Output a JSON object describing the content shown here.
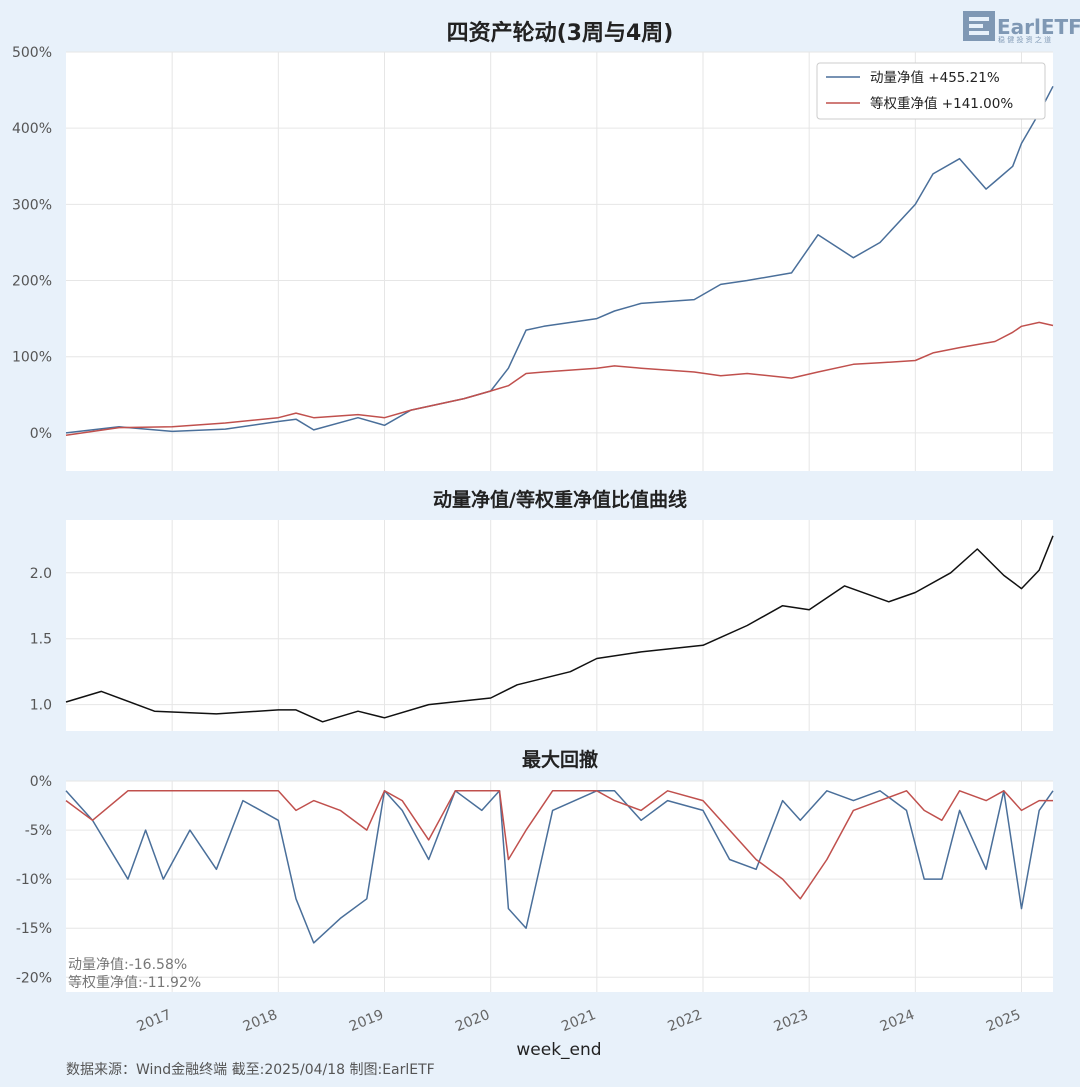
{
  "logo": {
    "text": "EarlETF",
    "subtext": "稳 健 投 资 之 道"
  },
  "footer": {
    "text": "数据来源：Wind金融终端 截至:2025/04/18 制图:EarlETF"
  },
  "xlabel": "week_end",
  "x_ticks": [
    "2017",
    "2018",
    "2019",
    "2020",
    "2021",
    "2022",
    "2023",
    "2024",
    "2025"
  ],
  "colors": {
    "momentum": "#4a6f9a",
    "equal": "#c0504d",
    "ratio": "#111111",
    "background": "#e8f1fa",
    "panel": "#ffffff",
    "grid": "#e6e6e6"
  },
  "chart_data": [
    {
      "type": "line",
      "title": "四资产轮动(3周与4周)",
      "x_range": [
        "2016-01",
        "2025-04-18"
      ],
      "ylim": [
        -50,
        500
      ],
      "y_ticks": [
        "0%",
        "100%",
        "200%",
        "300%",
        "400%",
        "500%"
      ],
      "legend_position": "top-right",
      "x": [
        "2016-01",
        "2016-07",
        "2017-01",
        "2017-07",
        "2018-01",
        "2018-03",
        "2018-05",
        "2018-10",
        "2019-01",
        "2019-04",
        "2019-10",
        "2020-01",
        "2020-03",
        "2020-05",
        "2020-07",
        "2021-01",
        "2021-03",
        "2021-06",
        "2021-12",
        "2022-03",
        "2022-06",
        "2022-11",
        "2023-02",
        "2023-06",
        "2023-09",
        "2024-01",
        "2024-03",
        "2024-06",
        "2024-09",
        "2024-10",
        "2024-12",
        "2025-01",
        "2025-03",
        "2025-04-18"
      ],
      "series": [
        {
          "name": "动量净值  +455.21%",
          "values": [
            0,
            8,
            2,
            5,
            15,
            18,
            4,
            20,
            10,
            30,
            45,
            55,
            85,
            135,
            140,
            150,
            160,
            170,
            175,
            195,
            200,
            210,
            260,
            230,
            250,
            300,
            340,
            360,
            320,
            330,
            350,
            380,
            420,
            455
          ]
        },
        {
          "name": "等权重净值  +141.00%",
          "values": [
            -3,
            7,
            8,
            13,
            20,
            26,
            20,
            24,
            20,
            30,
            45,
            55,
            62,
            78,
            80,
            85,
            88,
            85,
            80,
            75,
            78,
            72,
            80,
            90,
            92,
            95,
            105,
            112,
            118,
            120,
            132,
            140,
            145,
            141
          ]
        }
      ]
    },
    {
      "type": "line",
      "title": "动量净值/等权重净值比值曲线",
      "ylim": [
        0.8,
        2.4
      ],
      "y_ticks": [
        "1.0",
        "1.5",
        "2.0"
      ],
      "x": [
        "2016-01",
        "2016-05",
        "2016-11",
        "2017-06",
        "2018-01",
        "2018-03",
        "2018-06",
        "2018-10",
        "2019-01",
        "2019-06",
        "2020-01",
        "2020-04",
        "2020-10",
        "2021-01",
        "2021-06",
        "2022-01",
        "2022-06",
        "2022-10",
        "2023-01",
        "2023-05",
        "2023-10",
        "2024-01",
        "2024-05",
        "2024-08",
        "2024-11",
        "2025-01",
        "2025-03",
        "2025-04-18"
      ],
      "series": [
        {
          "name": "",
          "values": [
            1.02,
            1.1,
            0.95,
            0.93,
            0.96,
            0.96,
            0.87,
            0.95,
            0.9,
            1.0,
            1.05,
            1.15,
            1.25,
            1.35,
            1.4,
            1.45,
            1.6,
            1.75,
            1.72,
            1.9,
            1.78,
            1.85,
            2.0,
            2.18,
            1.98,
            1.88,
            2.02,
            2.28
          ]
        }
      ]
    },
    {
      "type": "line",
      "title": "最大回撤",
      "ylim": [
        -21.5,
        0
      ],
      "y_ticks": [
        "-20%",
        "-15%",
        "-10%",
        "-5%",
        "0%"
      ],
      "annotations": [
        "动量净值:-16.58%",
        "等权重净值:-11.92%"
      ],
      "x": [
        "2016-01",
        "2016-04",
        "2016-08",
        "2016-10",
        "2016-12",
        "2017-03",
        "2017-06",
        "2017-09",
        "2018-01",
        "2018-03",
        "2018-05",
        "2018-08",
        "2018-11",
        "2019-01",
        "2019-03",
        "2019-06",
        "2019-09",
        "2019-12",
        "2020-02",
        "2020-03",
        "2020-05",
        "2020-08",
        "2021-01",
        "2021-03",
        "2021-06",
        "2021-09",
        "2022-01",
        "2022-04",
        "2022-07",
        "2022-10",
        "2022-12",
        "2023-03",
        "2023-06",
        "2023-09",
        "2023-12",
        "2024-02",
        "2024-04",
        "2024-06",
        "2024-09",
        "2024-11",
        "2025-01",
        "2025-03",
        "2025-04-18"
      ],
      "series": [
        {
          "name": "动量净值",
          "values": [
            -1,
            -4,
            -10,
            -5,
            -10,
            -5,
            -9,
            -2,
            -4,
            -12,
            -16.5,
            -14,
            -12,
            -1,
            -3,
            -8,
            -1,
            -3,
            -1,
            -13,
            -15,
            -3,
            -1,
            -1,
            -4,
            -2,
            -3,
            -8,
            -9,
            -2,
            -4,
            -1,
            -2,
            -1,
            -3,
            -10,
            -10,
            -3,
            -9,
            -1,
            -13,
            -3,
            -1
          ]
        },
        {
          "name": "等权重净值",
          "values": [
            -2,
            -4,
            -1,
            -1,
            -1,
            -1,
            -1,
            -1,
            -1,
            -3,
            -2,
            -3,
            -5,
            -1,
            -2,
            -6,
            -1,
            -1,
            -1,
            -8,
            -5,
            -1,
            -1,
            -2,
            -3,
            -1,
            -2,
            -5,
            -8,
            -10,
            -12,
            -8,
            -3,
            -2,
            -1,
            -3,
            -4,
            -1,
            -2,
            -1,
            -3,
            -2,
            -2
          ]
        }
      ]
    }
  ]
}
